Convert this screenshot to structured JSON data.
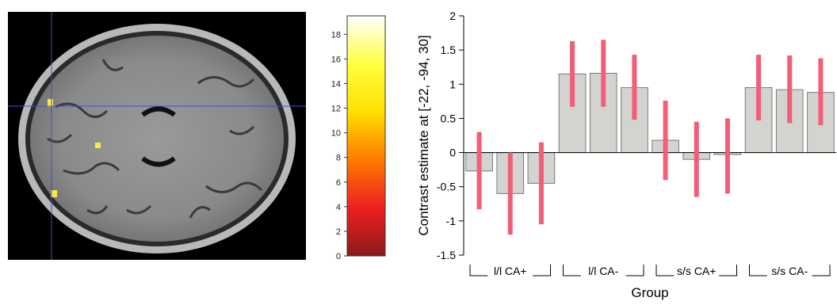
{
  "colorbar": {
    "ticks": [
      0,
      2,
      4,
      6,
      8,
      10,
      12,
      14,
      16,
      18
    ],
    "range": [
      0,
      19.5
    ],
    "colors": [
      "#8b1a1a",
      "#ee2020",
      "#ff7a00",
      "#ffe000",
      "#ffff40",
      "#ffffff"
    ]
  },
  "chart_data": {
    "type": "bar",
    "ylabel": "Contrast estimate at [-22, -94, 30]",
    "xlabel": "Group",
    "ylim": [
      -1.5,
      2
    ],
    "yticks": [
      2,
      1.5,
      1,
      0.5,
      0,
      -0.5,
      -1,
      -1.5
    ],
    "groups": [
      "l/l CA+",
      "l/l CA-",
      "s/s CA+",
      "s/s CA-"
    ],
    "bars_per_group": 3,
    "values": [
      -0.27,
      -0.6,
      -0.45,
      1.15,
      1.16,
      0.95,
      0.18,
      -0.1,
      -0.03,
      0.95,
      0.92,
      0.88
    ],
    "error_low": [
      -0.83,
      -1.2,
      -1.05,
      0.67,
      0.67,
      0.48,
      -0.4,
      -0.65,
      -0.6,
      0.47,
      0.43,
      0.4
    ],
    "error_high": [
      0.3,
      0.0,
      0.15,
      1.63,
      1.65,
      1.43,
      0.76,
      0.45,
      0.5,
      1.43,
      1.42,
      1.38
    ],
    "bar_color": "#d3d3cf",
    "error_color": "#f25d78",
    "grid": false
  }
}
